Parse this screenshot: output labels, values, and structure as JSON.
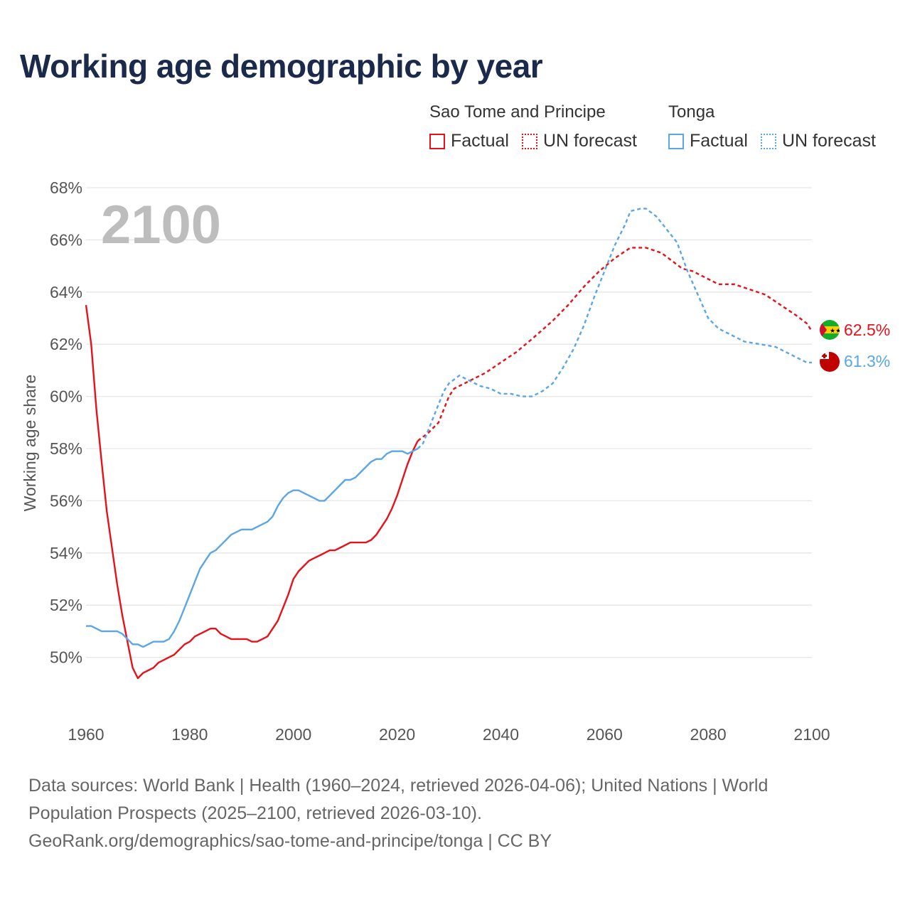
{
  "title": "Working age demographic by year",
  "legend": {
    "groups": [
      {
        "name": "Sao Tome and Principe",
        "factual": "Factual",
        "forecast": "UN forecast"
      },
      {
        "name": "Tonga",
        "factual": "Factual",
        "forecast": "UN forecast"
      }
    ]
  },
  "footer": {
    "line1": "Data sources: World Bank | Health (1960–2024, retrieved 2026-04-06); United Nations | World",
    "line2": "Population Prospects (2025–2100, retrieved 2026-03-10).",
    "line3": "GeoRank.org/demographics/sao-tome-and-principe/tonga | CC BY"
  },
  "colors": {
    "stp": "#e8101a",
    "tonga": "#5aa6e6",
    "grid": "#e6e6e6",
    "title": "#1b2a4a"
  },
  "chart_data": {
    "type": "line",
    "title": "Working age demographic by year",
    "ylabel": "Working age share",
    "xlabel": "",
    "year_label": "2100",
    "xlim": [
      1960,
      2100
    ],
    "ylim": [
      48,
      68
    ],
    "x_ticks": [
      1960,
      1980,
      2000,
      2020,
      2040,
      2060,
      2080,
      2100
    ],
    "y_ticks": [
      50,
      52,
      54,
      56,
      58,
      60,
      62,
      64,
      66,
      68
    ],
    "y_tick_labels": [
      "50%",
      "52%",
      "54%",
      "56%",
      "58%",
      "60%",
      "62%",
      "64%",
      "66%",
      "68%"
    ],
    "series": [
      {
        "name": "Sao Tome and Principe",
        "color": "#e8101a",
        "end_label": "62.5%",
        "factual": [
          [
            1960,
            63.5
          ],
          [
            1961,
            62.0
          ],
          [
            1962,
            59.5
          ],
          [
            1963,
            57.5
          ],
          [
            1964,
            55.6
          ],
          [
            1965,
            54.2
          ],
          [
            1966,
            52.8
          ],
          [
            1967,
            51.6
          ],
          [
            1968,
            50.6
          ],
          [
            1969,
            49.6
          ],
          [
            1970,
            49.2
          ],
          [
            1971,
            49.4
          ],
          [
            1972,
            49.5
          ],
          [
            1973,
            49.6
          ],
          [
            1974,
            49.8
          ],
          [
            1975,
            49.9
          ],
          [
            1976,
            50.0
          ],
          [
            1977,
            50.1
          ],
          [
            1978,
            50.3
          ],
          [
            1979,
            50.5
          ],
          [
            1980,
            50.6
          ],
          [
            1981,
            50.8
          ],
          [
            1982,
            50.9
          ],
          [
            1983,
            51.0
          ],
          [
            1984,
            51.1
          ],
          [
            1985,
            51.1
          ],
          [
            1986,
            50.9
          ],
          [
            1987,
            50.8
          ],
          [
            1988,
            50.7
          ],
          [
            1989,
            50.7
          ],
          [
            1990,
            50.7
          ],
          [
            1991,
            50.7
          ],
          [
            1992,
            50.6
          ],
          [
            1993,
            50.6
          ],
          [
            1994,
            50.7
          ],
          [
            1995,
            50.8
          ],
          [
            1996,
            51.1
          ],
          [
            1997,
            51.4
          ],
          [
            1998,
            51.9
          ],
          [
            1999,
            52.4
          ],
          [
            2000,
            53.0
          ],
          [
            2001,
            53.3
          ],
          [
            2002,
            53.5
          ],
          [
            2003,
            53.7
          ],
          [
            2004,
            53.8
          ],
          [
            2005,
            53.9
          ],
          [
            2006,
            54.0
          ],
          [
            2007,
            54.1
          ],
          [
            2008,
            54.1
          ],
          [
            2009,
            54.2
          ],
          [
            2010,
            54.3
          ],
          [
            2011,
            54.4
          ],
          [
            2012,
            54.4
          ],
          [
            2013,
            54.4
          ],
          [
            2014,
            54.4
          ],
          [
            2015,
            54.5
          ],
          [
            2016,
            54.7
          ],
          [
            2017,
            55.0
          ],
          [
            2018,
            55.3
          ],
          [
            2019,
            55.7
          ],
          [
            2020,
            56.2
          ],
          [
            2021,
            56.8
          ],
          [
            2022,
            57.4
          ],
          [
            2023,
            57.9
          ],
          [
            2024,
            58.3
          ]
        ],
        "forecast": [
          [
            2024,
            58.3
          ],
          [
            2026,
            58.6
          ],
          [
            2028,
            59.0
          ],
          [
            2030,
            60.0
          ],
          [
            2031,
            60.3
          ],
          [
            2033,
            60.5
          ],
          [
            2035,
            60.7
          ],
          [
            2037,
            60.9
          ],
          [
            2040,
            61.3
          ],
          [
            2043,
            61.7
          ],
          [
            2046,
            62.2
          ],
          [
            2050,
            62.9
          ],
          [
            2053,
            63.5
          ],
          [
            2056,
            64.2
          ],
          [
            2059,
            64.8
          ],
          [
            2062,
            65.3
          ],
          [
            2065,
            65.7
          ],
          [
            2068,
            65.7
          ],
          [
            2071,
            65.5
          ],
          [
            2073,
            65.2
          ],
          [
            2075,
            64.9
          ],
          [
            2077,
            64.8
          ],
          [
            2080,
            64.5
          ],
          [
            2082,
            64.3
          ],
          [
            2085,
            64.3
          ],
          [
            2088,
            64.1
          ],
          [
            2091,
            63.9
          ],
          [
            2094,
            63.5
          ],
          [
            2097,
            63.1
          ],
          [
            2099,
            62.8
          ],
          [
            2100,
            62.5
          ]
        ]
      },
      {
        "name": "Tonga",
        "color": "#5aa6e6",
        "end_label": "61.3%",
        "factual": [
          [
            1960,
            51.2
          ],
          [
            1961,
            51.2
          ],
          [
            1962,
            51.1
          ],
          [
            1963,
            51.0
          ],
          [
            1964,
            51.0
          ],
          [
            1965,
            51.0
          ],
          [
            1966,
            51.0
          ],
          [
            1967,
            50.9
          ],
          [
            1968,
            50.7
          ],
          [
            1969,
            50.5
          ],
          [
            1970,
            50.5
          ],
          [
            1971,
            50.4
          ],
          [
            1972,
            50.5
          ],
          [
            1973,
            50.6
          ],
          [
            1974,
            50.6
          ],
          [
            1975,
            50.6
          ],
          [
            1976,
            50.7
          ],
          [
            1977,
            51.0
          ],
          [
            1978,
            51.4
          ],
          [
            1979,
            51.9
          ],
          [
            1980,
            52.4
          ],
          [
            1981,
            52.9
          ],
          [
            1982,
            53.4
          ],
          [
            1983,
            53.7
          ],
          [
            1984,
            54.0
          ],
          [
            1985,
            54.1
          ],
          [
            1986,
            54.3
          ],
          [
            1987,
            54.5
          ],
          [
            1988,
            54.7
          ],
          [
            1989,
            54.8
          ],
          [
            1990,
            54.9
          ],
          [
            1991,
            54.9
          ],
          [
            1992,
            54.9
          ],
          [
            1993,
            55.0
          ],
          [
            1994,
            55.1
          ],
          [
            1995,
            55.2
          ],
          [
            1996,
            55.4
          ],
          [
            1997,
            55.8
          ],
          [
            1998,
            56.1
          ],
          [
            1999,
            56.3
          ],
          [
            2000,
            56.4
          ],
          [
            2001,
            56.4
          ],
          [
            2002,
            56.3
          ],
          [
            2003,
            56.2
          ],
          [
            2004,
            56.1
          ],
          [
            2005,
            56.0
          ],
          [
            2006,
            56.0
          ],
          [
            2007,
            56.2
          ],
          [
            2008,
            56.4
          ],
          [
            2009,
            56.6
          ],
          [
            2010,
            56.8
          ],
          [
            2011,
            56.8
          ],
          [
            2012,
            56.9
          ],
          [
            2013,
            57.1
          ],
          [
            2014,
            57.3
          ],
          [
            2015,
            57.5
          ],
          [
            2016,
            57.6
          ],
          [
            2017,
            57.6
          ],
          [
            2018,
            57.8
          ],
          [
            2019,
            57.9
          ],
          [
            2020,
            57.9
          ],
          [
            2021,
            57.9
          ],
          [
            2022,
            57.8
          ],
          [
            2023,
            57.9
          ],
          [
            2024,
            58.0
          ]
        ],
        "forecast": [
          [
            2024,
            58.0
          ],
          [
            2025,
            58.2
          ],
          [
            2026,
            58.7
          ],
          [
            2027,
            59.2
          ],
          [
            2028,
            59.7
          ],
          [
            2029,
            60.2
          ],
          [
            2030,
            60.5
          ],
          [
            2032,
            60.8
          ],
          [
            2034,
            60.6
          ],
          [
            2036,
            60.4
          ],
          [
            2038,
            60.3
          ],
          [
            2040,
            60.1
          ],
          [
            2042,
            60.1
          ],
          [
            2044,
            60.0
          ],
          [
            2046,
            60.0
          ],
          [
            2048,
            60.2
          ],
          [
            2050,
            60.5
          ],
          [
            2052,
            61.1
          ],
          [
            2054,
            61.8
          ],
          [
            2056,
            62.7
          ],
          [
            2058,
            63.8
          ],
          [
            2060,
            64.8
          ],
          [
            2062,
            65.8
          ],
          [
            2064,
            66.6
          ],
          [
            2065,
            67.1
          ],
          [
            2067,
            67.2
          ],
          [
            2068,
            67.2
          ],
          [
            2070,
            66.9
          ],
          [
            2072,
            66.4
          ],
          [
            2074,
            65.9
          ],
          [
            2076,
            64.8
          ],
          [
            2078,
            63.9
          ],
          [
            2080,
            63.0
          ],
          [
            2082,
            62.6
          ],
          [
            2084,
            62.4
          ],
          [
            2087,
            62.1
          ],
          [
            2090,
            62.0
          ],
          [
            2093,
            61.9
          ],
          [
            2096,
            61.6
          ],
          [
            2099,
            61.3
          ],
          [
            2100,
            61.3
          ]
        ]
      }
    ]
  }
}
